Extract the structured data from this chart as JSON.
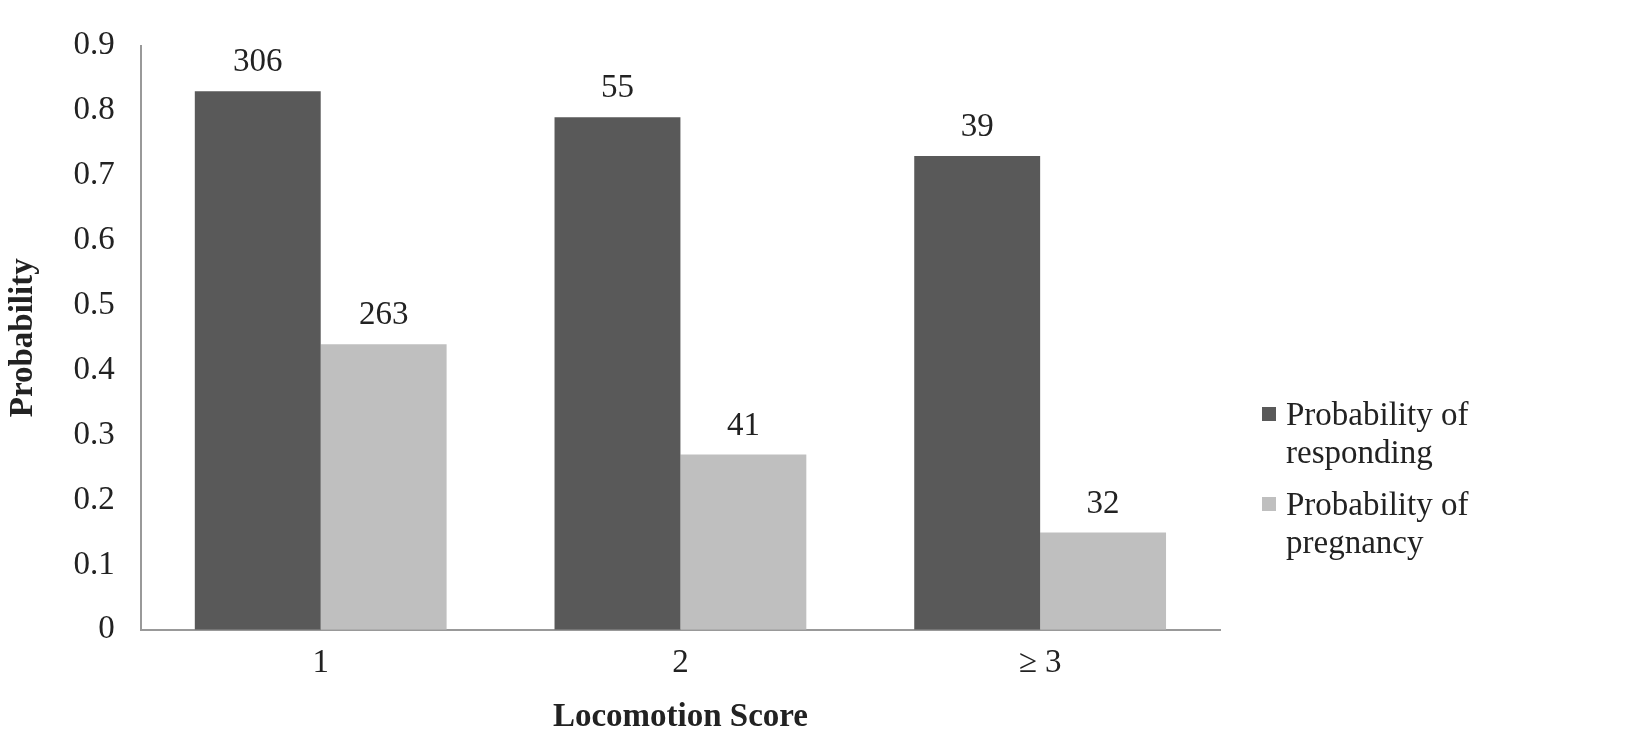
{
  "chart_data": {
    "type": "bar",
    "xlabel": "Locomotion Score",
    "ylabel": "Probability",
    "categories": [
      "1",
      "2",
      "≥ 3"
    ],
    "series": [
      {
        "name": "Probability of responding",
        "color": "#595959",
        "values": [
          0.83,
          0.79,
          0.73
        ]
      },
      {
        "name": "Probability of pregnancy",
        "color": "#bfbfbf",
        "values": [
          0.44,
          0.27,
          0.15
        ]
      }
    ],
    "annotations": [
      {
        "text": "306",
        "x": "1",
        "y": 0.83
      },
      {
        "text": "55",
        "x": "2",
        "y": 0.79
      },
      {
        "text": "39",
        "x": "≥ 3",
        "y": 0.73
      },
      {
        "text": "263",
        "x": "1",
        "y": 0.44
      },
      {
        "text": "41",
        "x": "2",
        "y": 0.27
      },
      {
        "text": "32",
        "x": "≥ 3",
        "y": 0.15
      }
    ],
    "ylim": [
      0,
      0.9
    ],
    "yticks": [
      0,
      0.1,
      0.2,
      0.3,
      0.4,
      0.5,
      0.6,
      0.7,
      0.8,
      0.9
    ],
    "grid": false,
    "legend": "right"
  }
}
